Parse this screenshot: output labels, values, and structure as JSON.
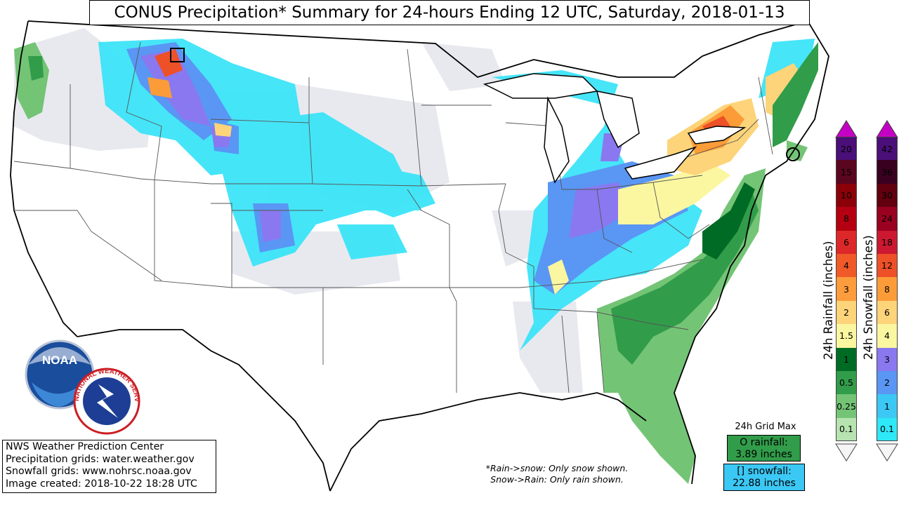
{
  "title": "CONUS Precipitation* Summary for 24-hours Ending 12 UTC, Saturday, 2018-01-13",
  "credits": [
    "NWS Weather Prediction Center",
    "Precipitation grids: water.weather.gov",
    "Snowfall grids: www.nohrsc.noaa.gov",
    "Image created: 2018-10-22 18:28 UTC"
  ],
  "grid_max": {
    "label": "24h Grid Max",
    "rain_line1": "O rainfall:",
    "rain_line2": "3.89 inches",
    "snow_line1": "[] snowfall:",
    "snow_line2": "22.88 inches"
  },
  "note": {
    "line1": "*Rain->snow: Only snow shown.",
    "line2": "Snow->Rain: Only rain shown."
  },
  "logos": {
    "noaa_text": "NOAA",
    "nws_text": "NATIONAL WEATHER SERVICE"
  },
  "rain_legend": {
    "title": "24h Rainfall (inches)",
    "levels": [
      "20",
      "15",
      "10",
      "8",
      "6",
      "4",
      "3",
      "2",
      "1.5",
      "1",
      "0.5",
      "0.25",
      "0.1"
    ],
    "colors": [
      "#4a0f78",
      "#5a0620",
      "#8c0008",
      "#b40010",
      "#dc2828",
      "#f05a28",
      "#fd9c3c",
      "#fdd47a",
      "#fbf7a0",
      "#006b25",
      "#319c4a",
      "#74c476",
      "#b7e3b1"
    ]
  },
  "snow_legend": {
    "title": "24h Snowfall (inches)",
    "levels": [
      "42",
      "36",
      "30",
      "24",
      "18",
      "12",
      "8",
      "6",
      "4",
      "3",
      "2",
      "1",
      "0.1"
    ],
    "colors": [
      "#4a0f78",
      "#3a0020",
      "#620010",
      "#9a0020",
      "#cc1830",
      "#ee5028",
      "#fc9c38",
      "#fdd47a",
      "#fbf7a0",
      "#8a78f0",
      "#5a96f4",
      "#3cc8f4",
      "#2ee8f8"
    ]
  },
  "map_colors": {
    "trace": "#e8e9ef",
    "rain_light": "#74c476",
    "rain_mid": "#319c4a",
    "rain_heavy": "#006b25",
    "snow_light": "#3ce4f8",
    "snow_mid": "#5a96f4",
    "snow_high": "#8a78f0",
    "snow_yellow": "#fbf7a0",
    "snow_orange": "#fc9c38",
    "snow_red": "#ee5028",
    "border": "#000000",
    "state_line": "#555555"
  }
}
